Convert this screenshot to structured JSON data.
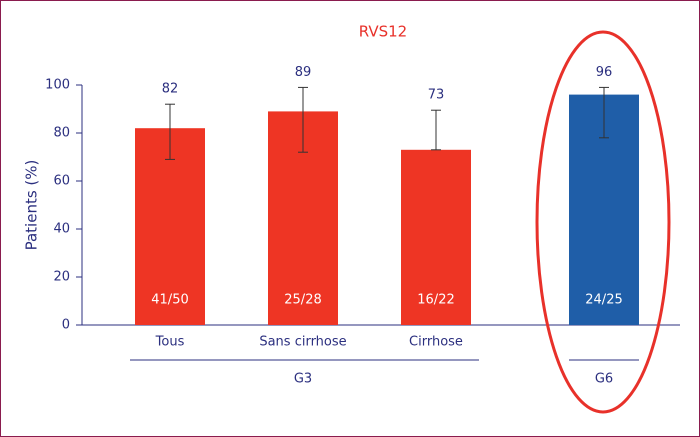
{
  "chart_data": {
    "type": "bar",
    "title": "RVS12",
    "y_label": "Patients (%)",
    "categories": [
      "Tous",
      "Sans cirrhose",
      "Cirrhose",
      null
    ],
    "group": [
      "G3",
      "G3",
      "G3",
      "G6"
    ],
    "values": [
      82,
      89,
      73,
      96
    ],
    "lower": [
      69,
      72,
      73,
      78
    ],
    "upper": [
      92,
      99,
      89.5,
      99
    ],
    "counts": [
      "41/50",
      "25/28",
      "16/22",
      "24/25"
    ],
    "colors": [
      "#ee3524",
      "#ee3524",
      "#ee3524",
      "#1f5ea8"
    ],
    "ylim": [
      0,
      100
    ],
    "yticks": [
      0,
      20,
      40,
      60,
      80,
      100
    ],
    "grid": false
  }
}
